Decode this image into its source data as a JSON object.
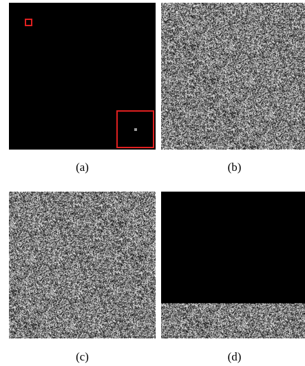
{
  "figure": {
    "panels": [
      {
        "id": "a",
        "caption": "(a)",
        "content": "black-image-with-zoom-inset",
        "highlight_color": "#e02020"
      },
      {
        "id": "b",
        "caption": "(b)",
        "content": "noise-like-image"
      },
      {
        "id": "c",
        "caption": "(c)",
        "content": "noise-like-image"
      },
      {
        "id": "d",
        "caption": "(d)",
        "content": "black-image-with-noisy-bottom-band"
      }
    ]
  }
}
